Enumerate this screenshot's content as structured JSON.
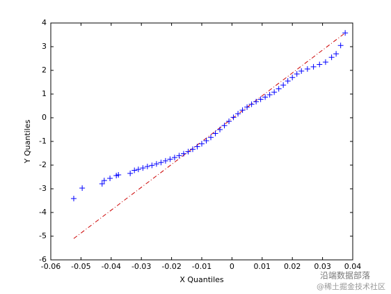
{
  "chart_data": {
    "type": "scatter",
    "xlabel": "X Quantiles",
    "ylabel": "Y Quantiles",
    "xlim": [
      -0.06,
      0.04
    ],
    "xticks": [
      -0.06,
      -0.05,
      -0.04,
      -0.03,
      -0.02,
      -0.01,
      0,
      0.01,
      0.02,
      0.03,
      0.04
    ],
    "ylim": [
      -6,
      4
    ],
    "yticks": [
      -6,
      -5,
      -4,
      -3,
      -2,
      -1,
      0,
      1,
      2,
      3,
      4
    ],
    "color": "#0000ff",
    "x": [
      -0.0524,
      -0.0496,
      -0.043,
      -0.0423,
      -0.0404,
      -0.0383,
      -0.0376,
      -0.0337,
      -0.0323,
      -0.031,
      -0.0295,
      -0.028,
      -0.0265,
      -0.025,
      -0.0235,
      -0.022,
      -0.0205,
      -0.019,
      -0.0175,
      -0.016,
      -0.0145,
      -0.013,
      -0.0115,
      -0.01,
      -0.0085,
      -0.007,
      -0.0055,
      -0.004,
      -0.0025,
      -0.001,
      0.0005,
      0.002,
      0.0035,
      0.005,
      0.0065,
      0.008,
      0.0095,
      0.011,
      0.0125,
      0.014,
      0.0155,
      0.017,
      0.0185,
      0.02,
      0.0215,
      0.023,
      0.025,
      0.027,
      0.029,
      0.031,
      0.033,
      0.0345,
      0.036,
      0.0375
    ],
    "y": [
      -3.41,
      -2.97,
      -2.79,
      -2.65,
      -2.56,
      -2.44,
      -2.41,
      -2.35,
      -2.22,
      -2.18,
      -2.12,
      -2.06,
      -2.01,
      -1.95,
      -1.89,
      -1.82,
      -1.75,
      -1.68,
      -1.6,
      -1.52,
      -1.43,
      -1.33,
      -1.22,
      -1.1,
      -0.97,
      -0.83,
      -0.66,
      -0.5,
      -0.33,
      -0.15,
      0.02,
      0.17,
      0.32,
      0.45,
      0.57,
      0.68,
      0.78,
      0.87,
      0.97,
      1.08,
      1.22,
      1.38,
      1.55,
      1.7,
      1.85,
      1.97,
      2.06,
      2.15,
      2.25,
      2.35,
      2.55,
      2.7,
      3.05,
      3.58
    ],
    "reference_line": {
      "color": "#cc0000",
      "x": [
        -0.0524,
        0.0375
      ],
      "y": [
        -5.1,
        3.58
      ]
    },
    "watermark": [
      "沿端数据部落",
      "@稀土掘金技术社区"
    ]
  }
}
